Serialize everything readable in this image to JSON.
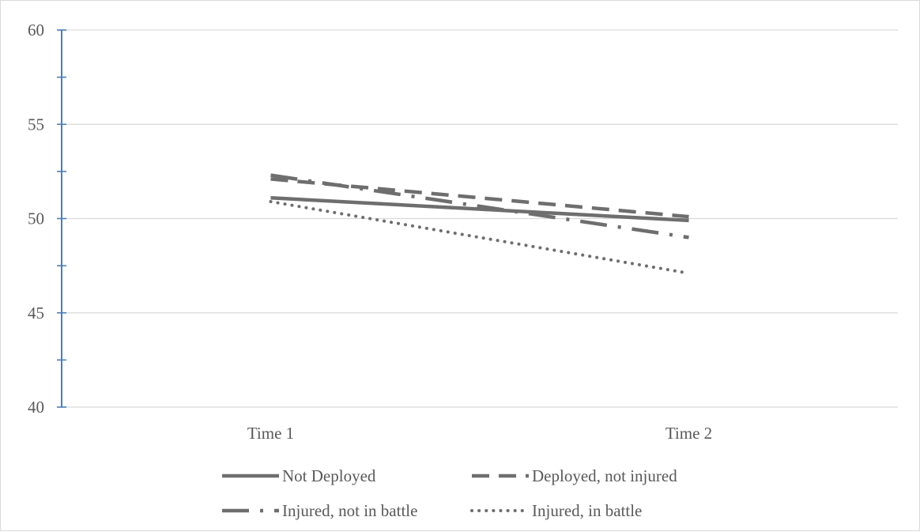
{
  "chart_data": {
    "type": "line",
    "title": "",
    "xlabel": "",
    "ylabel": "",
    "categories": [
      "Time 1",
      "Time 2"
    ],
    "ylim": [
      40,
      60
    ],
    "y_major_ticks": [
      40,
      45,
      50,
      55,
      60
    ],
    "y_minor_step": 2.5,
    "grid": true,
    "legend_position": "bottom",
    "series": [
      {
        "name": "Not Deployed",
        "values": [
          51.1,
          49.9
        ],
        "line_style": "solid",
        "color": "#6e6e6e"
      },
      {
        "name": "Deployed, not injured",
        "values": [
          52.1,
          50.1
        ],
        "line_style": "dashed",
        "color": "#6e6e6e"
      },
      {
        "name": "Injured, not in battle",
        "values": [
          52.3,
          49.0
        ],
        "line_style": "long-dash-dot",
        "color": "#6e6e6e"
      },
      {
        "name": "Injured, in battle",
        "values": [
          50.9,
          47.1
        ],
        "line_style": "dotted",
        "color": "#6e6e6e"
      }
    ],
    "colors": {
      "axis": "#4a7ebb",
      "grid": "#d9d9d9",
      "text": "#595959"
    }
  }
}
